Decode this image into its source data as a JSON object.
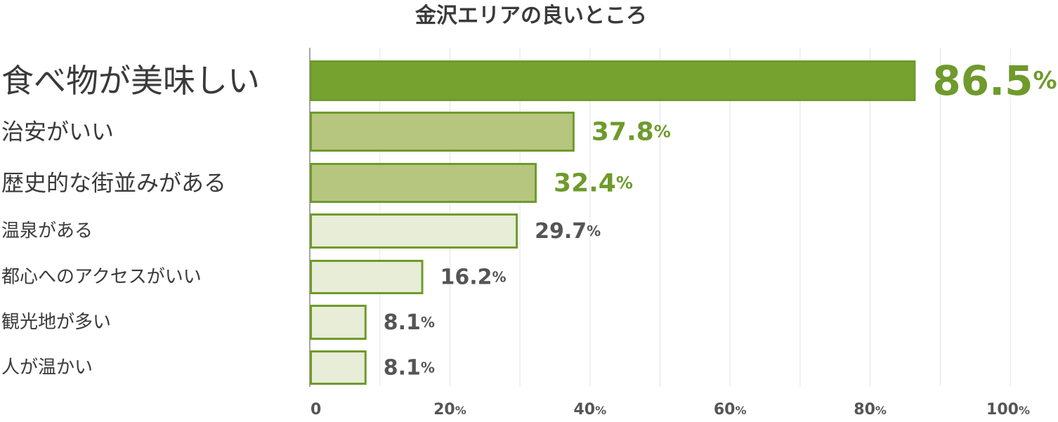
{
  "chart_data": {
    "type": "bar",
    "orientation": "horizontal",
    "title": "金沢エリアの良いところ",
    "categories": [
      "食べ物が美味しい",
      "治安がいい",
      "歴史的な街並みがある",
      "温泉がある",
      "都心へのアクセスがいい",
      "観光地が多い",
      "人が温かい"
    ],
    "values": [
      86.5,
      37.8,
      32.4,
      29.7,
      16.2,
      8.1,
      8.1
    ],
    "value_labels": [
      "86.5",
      "37.8",
      "32.4",
      "29.7",
      "16.2",
      "8.1",
      "8.1"
    ],
    "value_unit": "%",
    "xlim": [
      0,
      100
    ],
    "x_ticks": [
      {
        "value": 0,
        "label": "0",
        "unit": ""
      },
      {
        "value": 20,
        "label": "20",
        "unit": "%"
      },
      {
        "value": 40,
        "label": "40",
        "unit": "%"
      },
      {
        "value": 60,
        "label": "60",
        "unit": "%"
      },
      {
        "value": 80,
        "label": "80",
        "unit": "%"
      },
      {
        "value": 100,
        "label": "100",
        "unit": "%"
      }
    ],
    "grid": true,
    "colors": {
      "top": "#76a22f",
      "second": "#b6c67f",
      "rest": "#e7edd6",
      "border": "#6f9a2c",
      "value_highlight": "#6f9a2c",
      "value_default": "#555555",
      "label": "#3a3a3a",
      "grid": "#e4e4e4",
      "axis": "#888888"
    }
  }
}
